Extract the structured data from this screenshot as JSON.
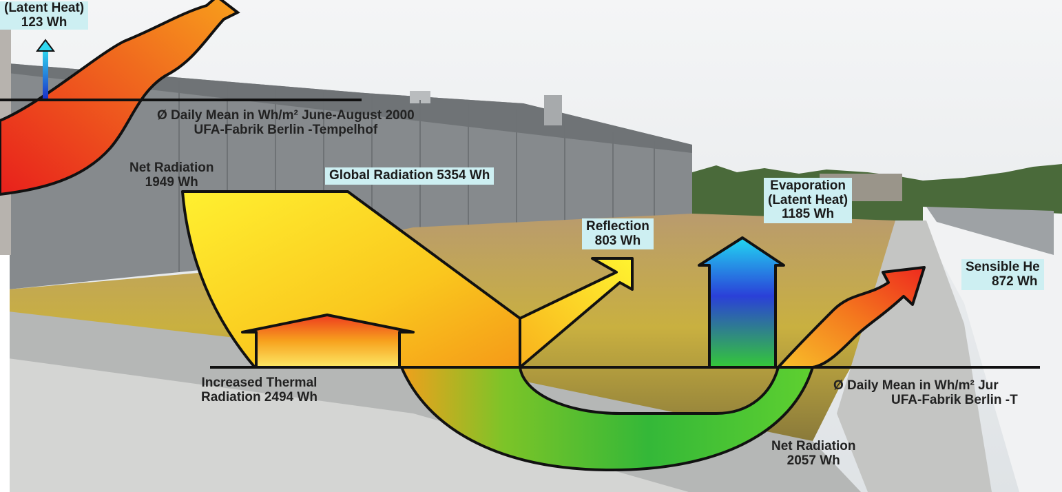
{
  "labels": {
    "top_latent": {
      "line1": "(Latent Heat)",
      "line2": "123 Wh"
    },
    "top_mean": {
      "line1": "Ø Daily Mean in Wh/m² June-August 2000",
      "line2": "UFA-Fabrik Berlin -Tempelhof"
    },
    "net_radiation_left": {
      "line1": "Net Radiation",
      "line2": "1949 Wh"
    },
    "global_radiation": "Global Radiation 5354 Wh",
    "reflection": {
      "line1": "Reflection",
      "line2": "803 Wh"
    },
    "evaporation": {
      "line1": "Evaporation",
      "line2": "(Latent Heat)",
      "line3": "1185 Wh"
    },
    "sensible_heat": {
      "line1": "Sensible He",
      "line2": "872 Wh"
    },
    "thermal": {
      "line1": "Increased Thermal",
      "line2": "Radiation 2494 Wh"
    },
    "bottom_mean": {
      "line1": "Ø Daily Mean in Wh/m² Jur",
      "line2": "UFA-Fabrik Berlin -T"
    },
    "net_radiation_right": {
      "line1": "Net Radiation",
      "line2": "2057 Wh"
    }
  },
  "colors": {
    "sky": "#e9ecee",
    "building": "#8a8d90",
    "roof_plants": "#b8a24a",
    "solar": "#f7d21a",
    "thermal": "#f0501e",
    "ground_flow": "#3cb832",
    "evap_top": "#22d2f0",
    "evap_bottom": "#2a3fd8",
    "label_box": "#cdeff2"
  }
}
